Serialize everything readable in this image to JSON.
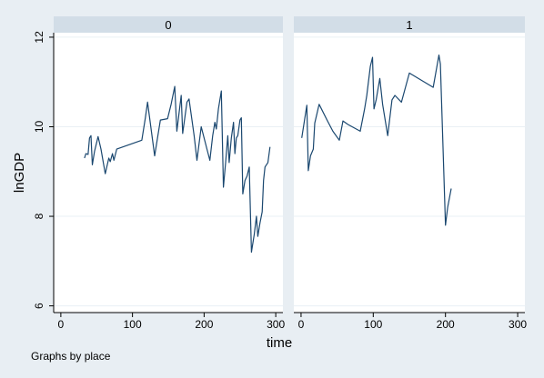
{
  "chart_data": {
    "type": "line",
    "xlabel": "time",
    "ylabel": "lnGDP",
    "note": "Graphs by place",
    "xlim": [
      -10,
      310
    ],
    "ylim": [
      5.85,
      12.1
    ],
    "xticks": [
      0,
      100,
      200,
      300
    ],
    "yticks": [
      6,
      8,
      10,
      12
    ],
    "grid": true,
    "line_color": "#1a476f",
    "panels": [
      {
        "title": "0",
        "points": [
          [
            33,
            9.3
          ],
          [
            35,
            9.4
          ],
          [
            38,
            9.38
          ],
          [
            40,
            9.75
          ],
          [
            42,
            9.8
          ],
          [
            44,
            9.15
          ],
          [
            47,
            9.45
          ],
          [
            52,
            9.78
          ],
          [
            56,
            9.5
          ],
          [
            62,
            8.95
          ],
          [
            67,
            9.3
          ],
          [
            69,
            9.22
          ],
          [
            72,
            9.4
          ],
          [
            74,
            9.25
          ],
          [
            78,
            9.5
          ],
          [
            113,
            9.7
          ],
          [
            118,
            10.2
          ],
          [
            121,
            10.55
          ],
          [
            126,
            9.95
          ],
          [
            131,
            9.35
          ],
          [
            139,
            10.15
          ],
          [
            149,
            10.18
          ],
          [
            154,
            10.5
          ],
          [
            159,
            10.9
          ],
          [
            162,
            9.9
          ],
          [
            168,
            10.7
          ],
          [
            170,
            9.85
          ],
          [
            176,
            10.55
          ],
          [
            179,
            10.62
          ],
          [
            186,
            9.8
          ],
          [
            190,
            9.25
          ],
          [
            196,
            10.0
          ],
          [
            204,
            9.5
          ],
          [
            208,
            9.25
          ],
          [
            212,
            9.8
          ],
          [
            215,
            10.1
          ],
          [
            217,
            9.95
          ],
          [
            220,
            10.4
          ],
          [
            224,
            10.8
          ],
          [
            227,
            8.65
          ],
          [
            230,
            9.2
          ],
          [
            233,
            9.8
          ],
          [
            235,
            9.2
          ],
          [
            238,
            9.75
          ],
          [
            241,
            10.1
          ],
          [
            243,
            9.4
          ],
          [
            245,
            9.75
          ],
          [
            247,
            9.8
          ],
          [
            250,
            10.15
          ],
          [
            252,
            10.2
          ],
          [
            254,
            8.5
          ],
          [
            257,
            8.8
          ],
          [
            260,
            8.9
          ],
          [
            263,
            9.1
          ],
          [
            266,
            7.2
          ],
          [
            270,
            7.6
          ],
          [
            273,
            8.0
          ],
          [
            275,
            7.55
          ],
          [
            278,
            7.85
          ],
          [
            281,
            8.1
          ],
          [
            283,
            8.8
          ],
          [
            285,
            9.1
          ],
          [
            289,
            9.2
          ],
          [
            292,
            9.55
          ]
        ]
      },
      {
        "title": "1",
        "points": [
          [
            1,
            9.75
          ],
          [
            8,
            10.48
          ],
          [
            10,
            9.02
          ],
          [
            13,
            9.35
          ],
          [
            17,
            9.5
          ],
          [
            19,
            10.08
          ],
          [
            25,
            10.5
          ],
          [
            36,
            10.15
          ],
          [
            44,
            9.9
          ],
          [
            53,
            9.7
          ],
          [
            58,
            10.13
          ],
          [
            65,
            10.05
          ],
          [
            82,
            9.9
          ],
          [
            88,
            10.4
          ],
          [
            91,
            10.7
          ],
          [
            96,
            11.35
          ],
          [
            99,
            11.55
          ],
          [
            101,
            10.4
          ],
          [
            104,
            10.6
          ],
          [
            109,
            11.08
          ],
          [
            113,
            10.5
          ],
          [
            120,
            9.8
          ],
          [
            126,
            10.6
          ],
          [
            130,
            10.7
          ],
          [
            139,
            10.55
          ],
          [
            150,
            11.2
          ],
          [
            183,
            10.88
          ],
          [
            191,
            11.6
          ],
          [
            193,
            11.4
          ],
          [
            200,
            7.8
          ],
          [
            203,
            8.2
          ],
          [
            208,
            8.62
          ]
        ]
      }
    ]
  }
}
